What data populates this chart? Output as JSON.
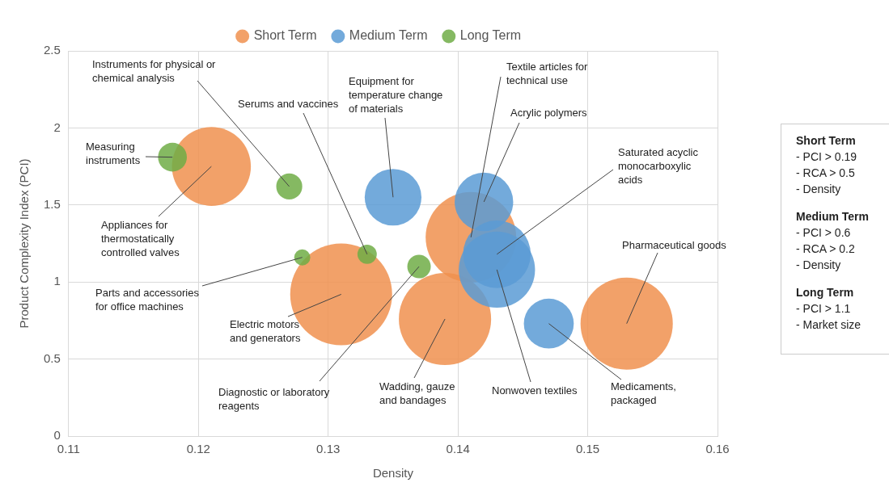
{
  "chart_data": {
    "type": "bubble",
    "xlabel": "Density",
    "ylabel": "Product Complexity Index (PCI)",
    "xlim": [
      0.11,
      0.16
    ],
    "xticks": [
      0.11,
      0.12,
      0.13,
      0.14,
      0.15,
      0.16
    ],
    "ylim": [
      0,
      2.5
    ],
    "yticks": [
      0,
      0.5,
      1,
      1.5,
      2,
      2.5
    ],
    "grid": true,
    "legend": "top",
    "series": [
      {
        "name": "Short Term",
        "color": "#f0904f",
        "x": [
          0.121,
          0.131,
          0.139,
          0.141,
          0.153
        ],
        "values": [
          1.75,
          0.92,
          0.76,
          1.29,
          0.73
        ],
        "sizes": [
          0.6,
          1,
          0.82,
          0.79,
          0.82
        ]
      },
      {
        "name": "Medium Term",
        "color": "#5b9bd5",
        "x": [
          0.135,
          0.142,
          0.143,
          0.143,
          0.147
        ],
        "values": [
          1.55,
          1.52,
          1.18,
          1.08,
          0.73
        ],
        "sizes": [
          0.31,
          0.33,
          0.44,
          0.56,
          0.24
        ]
      },
      {
        "name": "Long Term",
        "color": "#70ad47",
        "x": [
          0.118,
          0.127,
          0.128,
          0.133,
          0.137
        ],
        "values": [
          1.81,
          1.62,
          1.16,
          1.18,
          1.1
        ],
        "sizes": [
          0.08,
          0.065,
          0.025,
          0.036,
          0.053
        ]
      }
    ],
    "annotations": [
      {
        "text": "Appliances for thermostatically controlled valves",
        "x": 0.121,
        "y": 1.75
      },
      {
        "text": "Electric motors and generators",
        "x": 0.131,
        "y": 0.92
      },
      {
        "text": "Wadding, gauze and bandages",
        "x": 0.139,
        "y": 0.76
      },
      {
        "text": "Textile articles for technical use",
        "x": 0.141,
        "y": 1.29
      },
      {
        "text": "Pharmaceutical goods",
        "x": 0.153,
        "y": 0.73
      },
      {
        "text": "Equipment for temperature change of materials",
        "x": 0.135,
        "y": 1.55
      },
      {
        "text": "Acrylic polymers",
        "x": 0.142,
        "y": 1.52
      },
      {
        "text": "Saturated acyclic monocarboxylic acids",
        "x": 0.143,
        "y": 1.18
      },
      {
        "text": "Nonwoven textiles",
        "x": 0.143,
        "y": 1.08
      },
      {
        "text": "Medicaments, packaged",
        "x": 0.147,
        "y": 0.73
      },
      {
        "text": "Measuring instruments",
        "x": 0.118,
        "y": 1.81
      },
      {
        "text": "Instruments for physical or chemical analysis",
        "x": 0.127,
        "y": 1.62
      },
      {
        "text": "Parts and accessories for office machines",
        "x": 0.128,
        "y": 1.16
      },
      {
        "text": "Serums and vaccines",
        "x": 0.133,
        "y": 1.18
      },
      {
        "text": "Diagnostic or laboratory reagents",
        "x": 0.137,
        "y": 1.1
      },
      "Short Term",
      "-   PCI > 0.19",
      "-   RCA > 0.5",
      "-   Density",
      "Medium Term",
      "-   PCI > 0.6",
      "-   RCA > 0.2",
      "-   Density",
      "Long Term",
      "-   PCI > 1.1",
      "-   Market size"
    ]
  }
}
